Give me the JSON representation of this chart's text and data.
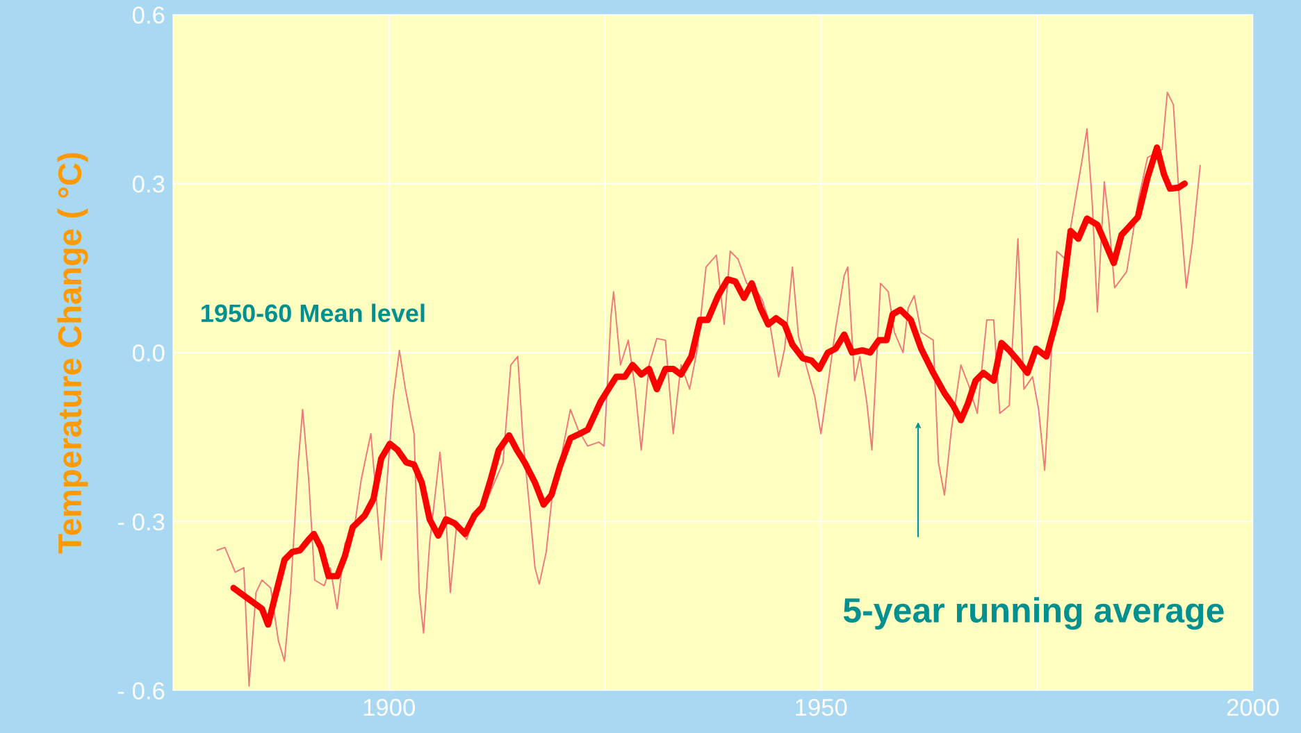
{
  "chart_data": {
    "type": "line",
    "ylabel": "Temperature Change ( °C)",
    "xlim": [
      1875,
      2000
    ],
    "ylim": [
      -0.6,
      0.6
    ],
    "xticks": [
      1900,
      {
        "value": 1925,
        "label": null
      },
      1950,
      {
        "value": 1975,
        "label": null
      },
      2000
    ],
    "yticks": [
      {
        "value": -0.6,
        "label": "- 0.6"
      },
      {
        "value": -0.3,
        "label": "- 0.3"
      },
      {
        "value": 0.0,
        "label": "0.0"
      },
      0.3,
      0.6
    ],
    "grid": true,
    "legend": false,
    "marker": "none",
    "line_style": "solid",
    "annotations": [
      "1950-60 Mean level",
      "5-year running average"
    ],
    "series": [
      {
        "color": "#f07878",
        "x": [
          1880.1,
          1881.0,
          1882.2,
          1883.2,
          1883.8,
          1884.6,
          1885.3,
          1886.3,
          1887.2,
          1887.9,
          1888.6,
          1889.5,
          1890.0,
          1890.7,
          1891.4,
          1892.5,
          1893.2,
          1894.0,
          1894.9,
          1896.0,
          1896.8,
          1897.9,
          1898.5,
          1899.1,
          1899.8,
          1900.5,
          1901.2,
          1901.9,
          1902.9,
          1903.5,
          1904.0,
          1904.7,
          1905.9,
          1906.6,
          1907.1,
          1907.8,
          1909.0,
          1909.9,
          1910.8,
          1912.0,
          1913.2,
          1914.1,
          1914.9,
          1915.5,
          1916.3,
          1916.9,
          1917.4,
          1918.2,
          1919.1,
          1920.0,
          1921.0,
          1921.9,
          1923.0,
          1924.3,
          1924.9,
          1925.7,
          1926.0,
          1926.8,
          1927.7,
          1928.5,
          1929.2,
          1930.1,
          1931.0,
          1932.0,
          1932.9,
          1933.8,
          1934.8,
          1935.7,
          1936.7,
          1937.9,
          1938.8,
          1939.5,
          1940.4,
          1941.4,
          1942.3,
          1943.2,
          1944.1,
          1945.1,
          1945.8,
          1946.7,
          1947.4,
          1948.4,
          1949.3,
          1950.0,
          1950.8,
          1951.7,
          1952.7,
          1953.1,
          1953.9,
          1954.5,
          1955.3,
          1955.9,
          1956.9,
          1957.8,
          1958.5,
          1959.5,
          1960.1,
          1960.8,
          1961.6,
          1963.0,
          1963.6,
          1964.3,
          1965.1,
          1966.2,
          1967.1,
          1968.1,
          1969.2,
          1970.0,
          1970.7,
          1971.8,
          1972.8,
          1973.5,
          1974.5,
          1975.2,
          1975.9,
          1976.6,
          1977.3,
          1978.3,
          1979.4,
          1980.2,
          1980.8,
          1981.4,
          1982.0,
          1982.8,
          1983.3,
          1984.0,
          1985.4,
          1986.7,
          1987.8,
          1989.5,
          1990.1,
          1990.8,
          1991.5,
          1992.3,
          1993.0,
          1993.9
        ],
        "values": [
          -0.351,
          -0.346,
          -0.39,
          -0.382,
          -0.592,
          -0.426,
          -0.404,
          -0.418,
          -0.512,
          -0.548,
          -0.426,
          -0.195,
          -0.101,
          -0.224,
          -0.404,
          -0.414,
          -0.382,
          -0.455,
          -0.339,
          -0.31,
          -0.224,
          -0.144,
          -0.253,
          -0.368,
          -0.224,
          -0.079,
          0.004,
          -0.065,
          -0.144,
          -0.426,
          -0.498,
          -0.339,
          -0.177,
          -0.296,
          -0.426,
          -0.31,
          -0.332,
          -0.289,
          -0.281,
          -0.238,
          -0.195,
          -0.022,
          -0.007,
          -0.152,
          -0.281,
          -0.382,
          -0.411,
          -0.354,
          -0.224,
          -0.18,
          -0.101,
          -0.137,
          -0.166,
          -0.159,
          -0.166,
          0.065,
          0.108,
          -0.022,
          0.022,
          -0.065,
          -0.173,
          -0.022,
          0.025,
          0.022,
          -0.144,
          -0.022,
          -0.065,
          0.007,
          0.152,
          0.173,
          0.05,
          0.18,
          0.166,
          0.123,
          0.115,
          0.094,
          0.05,
          -0.043,
          0.007,
          0.152,
          0.029,
          -0.029,
          -0.079,
          -0.144,
          -0.058,
          0.043,
          0.137,
          0.152,
          -0.05,
          -0.007,
          -0.087,
          -0.173,
          0.123,
          0.108,
          0.036,
          0.0,
          0.079,
          0.101,
          0.036,
          0.022,
          -0.195,
          -0.253,
          -0.137,
          -0.022,
          -0.058,
          -0.108,
          0.058,
          0.058,
          -0.108,
          -0.094,
          0.202,
          -0.065,
          -0.043,
          -0.101,
          -0.209,
          -0.022,
          0.18,
          0.166,
          0.267,
          0.339,
          0.397,
          0.267,
          0.072,
          0.303,
          0.238,
          0.115,
          0.144,
          0.267,
          0.346,
          0.361,
          0.462,
          0.44,
          0.267,
          0.115,
          0.195,
          0.332
        ]
      },
      {
        "color": "#ff0000",
        "x": [
          1882.0,
          1885.3,
          1886.0,
          1886.7,
          1887.9,
          1888.8,
          1889.7,
          1890.7,
          1891.3,
          1892.1,
          1893.0,
          1894.0,
          1894.9,
          1895.8,
          1897.2,
          1898.2,
          1899.1,
          1900.1,
          1901.0,
          1902.0,
          1902.9,
          1903.8,
          1904.7,
          1905.7,
          1906.6,
          1907.6,
          1908.8,
          1909.9,
          1910.8,
          1911.8,
          1912.7,
          1913.9,
          1914.8,
          1915.7,
          1916.9,
          1917.9,
          1918.8,
          1919.8,
          1921.0,
          1922.1,
          1923.0,
          1924.5,
          1925.4,
          1926.3,
          1927.3,
          1928.2,
          1929.2,
          1930.1,
          1931.0,
          1932.0,
          1932.9,
          1933.8,
          1935.0,
          1936.0,
          1936.9,
          1938.1,
          1939.2,
          1940.1,
          1941.1,
          1942.0,
          1943.0,
          1943.9,
          1944.8,
          1945.8,
          1946.7,
          1947.9,
          1948.9,
          1949.8,
          1950.8,
          1951.7,
          1952.7,
          1953.6,
          1954.8,
          1955.7,
          1956.7,
          1957.6,
          1958.3,
          1959.2,
          1960.4,
          1961.6,
          1963.0,
          1964.3,
          1965.3,
          1966.2,
          1967.0,
          1967.9,
          1968.8,
          1970.0,
          1970.9,
          1971.8,
          1972.8,
          1973.9,
          1974.9,
          1976.1,
          1977.0,
          1977.9,
          1978.9,
          1979.8,
          1980.8,
          1982.0,
          1982.9,
          1983.9,
          1984.8,
          1985.7,
          1986.7,
          1987.8,
          1988.9,
          1989.7,
          1990.4,
          1991.4,
          1992.1
        ],
        "values": [
          -0.418,
          -0.455,
          -0.483,
          -0.44,
          -0.368,
          -0.354,
          -0.351,
          -0.332,
          -0.322,
          -0.346,
          -0.397,
          -0.397,
          -0.361,
          -0.31,
          -0.289,
          -0.26,
          -0.188,
          -0.162,
          -0.173,
          -0.195,
          -0.199,
          -0.231,
          -0.296,
          -0.325,
          -0.296,
          -0.303,
          -0.322,
          -0.289,
          -0.274,
          -0.224,
          -0.173,
          -0.147,
          -0.173,
          -0.195,
          -0.231,
          -0.27,
          -0.253,
          -0.202,
          -0.152,
          -0.144,
          -0.137,
          -0.087,
          -0.065,
          -0.043,
          -0.043,
          -0.022,
          -0.039,
          -0.029,
          -0.065,
          -0.029,
          -0.029,
          -0.039,
          -0.007,
          0.058,
          0.058,
          0.101,
          0.13,
          0.126,
          0.097,
          0.123,
          0.079,
          0.05,
          0.061,
          0.05,
          0.014,
          -0.01,
          -0.014,
          -0.029,
          0.0,
          0.007,
          0.032,
          0.0,
          0.004,
          0.0,
          0.022,
          0.022,
          0.068,
          0.076,
          0.058,
          0.007,
          -0.036,
          -0.072,
          -0.094,
          -0.12,
          -0.091,
          -0.05,
          -0.036,
          -0.05,
          0.017,
          0.004,
          -0.014,
          -0.036,
          0.007,
          -0.007,
          0.043,
          0.094,
          0.216,
          0.202,
          0.238,
          0.227,
          0.195,
          0.159,
          0.209,
          0.224,
          0.241,
          0.31,
          0.364,
          0.317,
          0.291,
          0.293,
          0.3
        ]
      }
    ]
  }
}
